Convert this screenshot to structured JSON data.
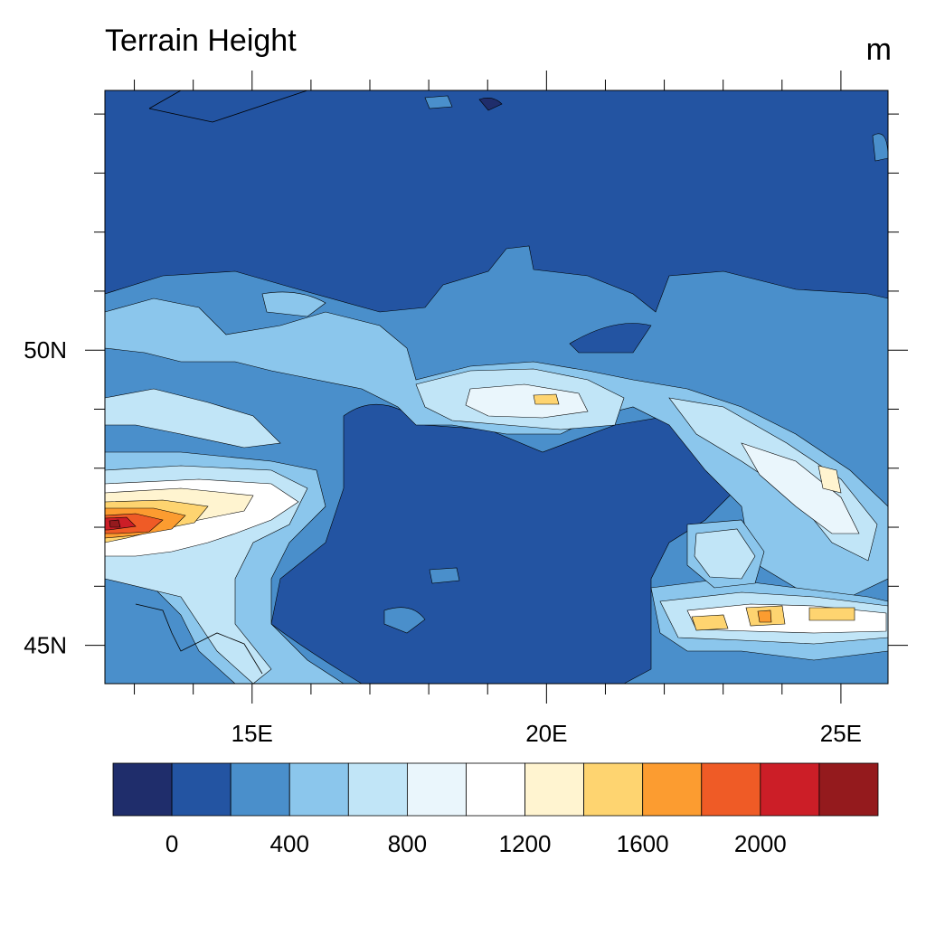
{
  "title": "Terrain Height",
  "units": "m",
  "axes": {
    "x_ticks": [
      {
        "value": 15,
        "label": "15E"
      },
      {
        "value": 20,
        "label": "20E"
      },
      {
        "value": 25,
        "label": "25E"
      }
    ],
    "y_ticks": [
      {
        "value": 50,
        "label": "50N"
      },
      {
        "value": 45,
        "label": "45N"
      }
    ],
    "lon_range": [
      12.5,
      25.8
    ],
    "lat_range": [
      44.35,
      54.4
    ]
  },
  "colorbar": {
    "colors": [
      "#1f2d6b",
      "#2354a2",
      "#4a8fcb",
      "#8bc6ec",
      "#c1e5f7",
      "#eaf6fc",
      "#ffffff",
      "#fff4d0",
      "#fed470",
      "#fc9c30",
      "#ef5b26",
      "#cc1e27",
      "#941a1d"
    ],
    "labels": [
      {
        "index": 1,
        "text": "0"
      },
      {
        "index": 3,
        "text": "400"
      },
      {
        "index": 5,
        "text": "800"
      },
      {
        "index": 7,
        "text": "1200"
      },
      {
        "index": 9,
        "text": "1600"
      },
      {
        "index": 11,
        "text": "2000"
      }
    ]
  },
  "colors": {
    "background": "#ffffff",
    "lowland": "#2354a2"
  }
}
